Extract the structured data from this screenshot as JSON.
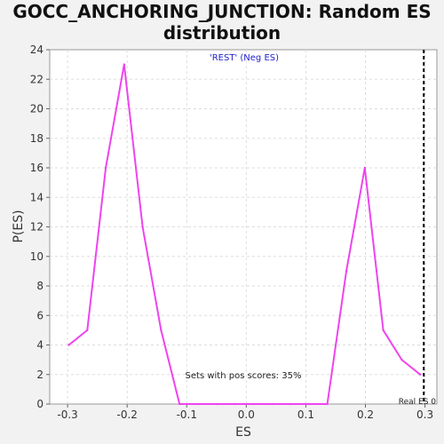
{
  "chart_data": {
    "type": "line",
    "title": "GOCC_ANCHORING_JUNCTION: Random ES distribution",
    "subtitle": "'REST' (Neg ES)",
    "xlabel": "ES",
    "ylabel": "P(ES)",
    "xlim": [
      -0.33,
      0.32
    ],
    "ylim": [
      0,
      24
    ],
    "x_ticks": [
      -0.3,
      -0.2,
      -0.1,
      0.0,
      0.1,
      0.2,
      0.3
    ],
    "x_tick_labels": [
      "-0.3",
      "-0.2",
      "-0.1",
      "0.0",
      "0.1",
      "0.2",
      "0.3"
    ],
    "y_ticks": [
      0,
      2,
      4,
      6,
      8,
      10,
      12,
      14,
      16,
      18,
      20,
      22,
      24
    ],
    "y_tick_labels": [
      "0",
      "2",
      "4",
      "6",
      "8",
      "10",
      "12",
      "14",
      "16",
      "18",
      "20",
      "22",
      "24"
    ],
    "grid": true,
    "series": [
      {
        "color": "#ee44ee",
        "x": [
          -0.298,
          -0.267,
          -0.236,
          -0.205,
          -0.174,
          -0.143,
          -0.112,
          -0.081,
          -0.05,
          -0.019,
          0.012,
          0.043,
          0.074,
          0.105,
          0.136,
          0.168,
          0.199,
          0.23,
          0.261,
          0.292
        ],
        "y": [
          4,
          5,
          16,
          23,
          12,
          5,
          0,
          0,
          0,
          0,
          0,
          0,
          0,
          0,
          0,
          9,
          16,
          5,
          3,
          2
        ]
      }
    ],
    "real_es": {
      "x": 0.298,
      "label": "Real ES 0",
      "color": "#000000"
    },
    "annotation": "Sets with pos scores: 35%"
  }
}
